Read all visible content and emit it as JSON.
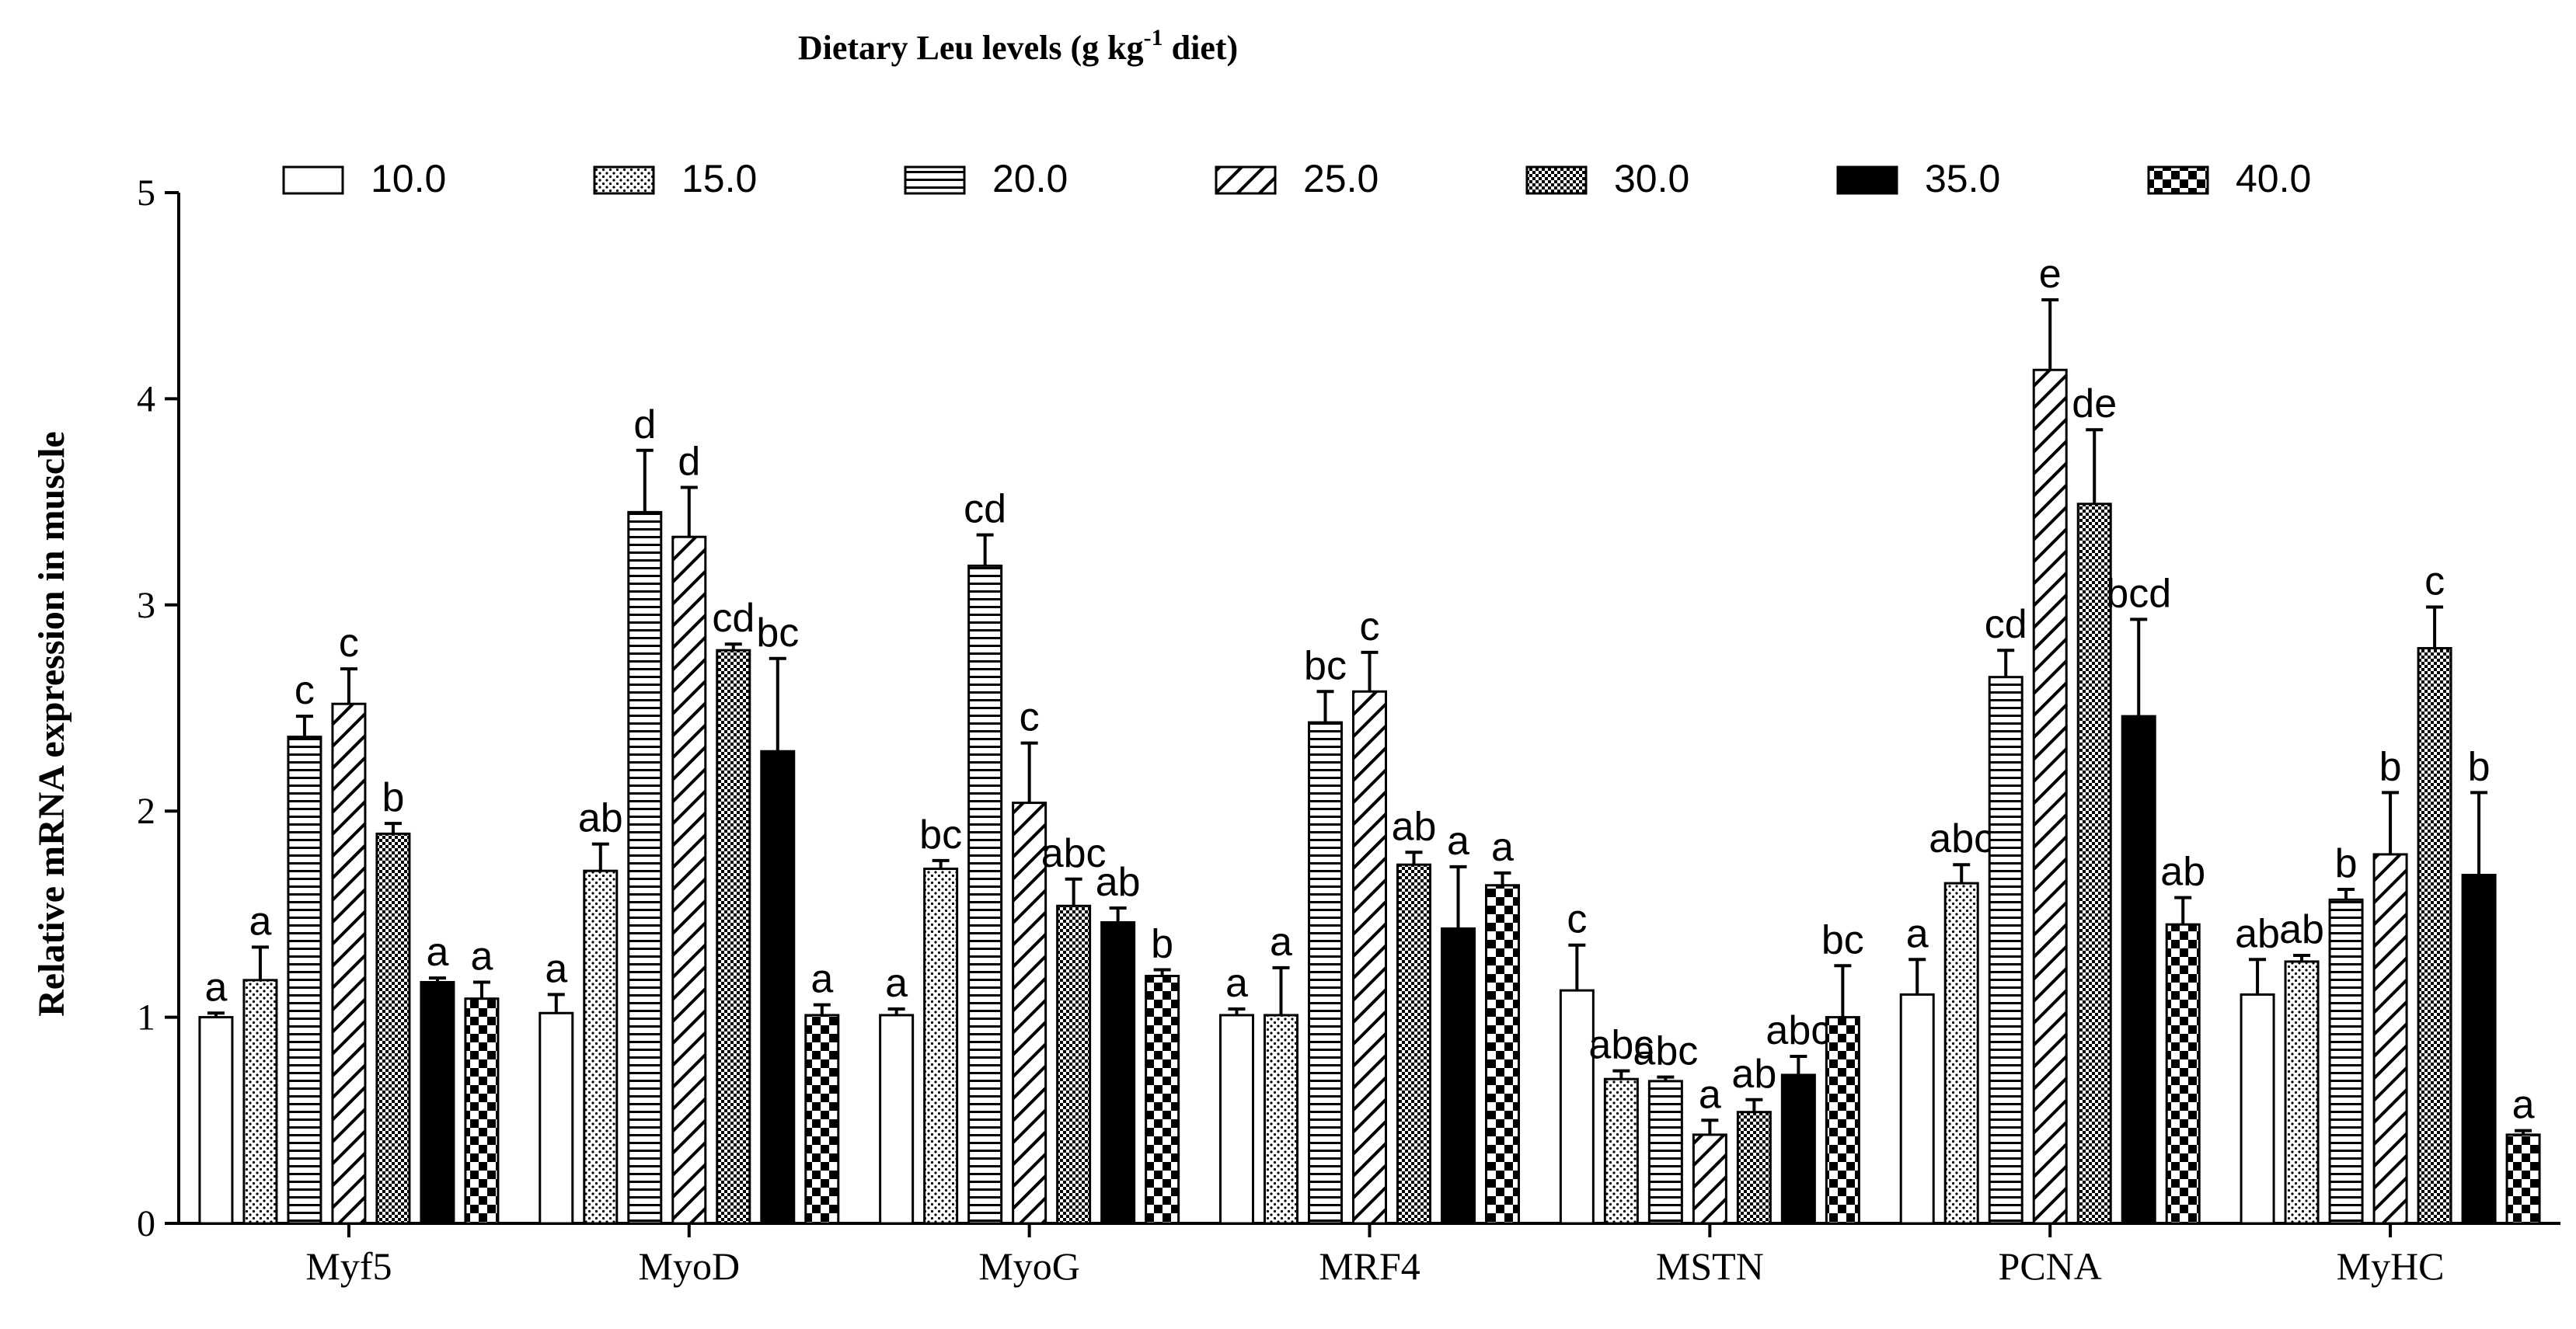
{
  "chart_data": {
    "type": "bar",
    "title": "Dietary Leu levels (g kg",
    "title_sup": "-1",
    "title_tail": " diet)",
    "xlabel": "",
    "ylabel": "Relative mRNA expression in muscle",
    "ylim": [
      0,
      5
    ],
    "yticks": [
      "0",
      "1",
      "2",
      "3",
      "4",
      "5"
    ],
    "categories": [
      "Myf5",
      "MyoD",
      "MyoG",
      "MRF4",
      "MSTN",
      "PCNA",
      "MyHC"
    ],
    "legend_position": "top",
    "series": [
      {
        "name": "10.0",
        "pattern": "white",
        "values": [
          1.0,
          1.02,
          1.01,
          1.01,
          1.13,
          1.11,
          1.11
        ],
        "errors": [
          0.02,
          0.09,
          0.03,
          0.03,
          0.22,
          0.17,
          0.17
        ],
        "labels": [
          "a",
          "a",
          "a",
          "a",
          "c",
          "a",
          "ab"
        ]
      },
      {
        "name": "15.0",
        "pattern": "dots",
        "values": [
          1.18,
          1.71,
          1.72,
          1.01,
          0.7,
          1.65,
          1.27
        ],
        "errors": [
          0.16,
          0.13,
          0.04,
          0.23,
          0.04,
          0.09,
          0.03
        ],
        "labels": [
          "a",
          "ab",
          "bc",
          "a",
          "abc",
          "abc",
          "ab"
        ]
      },
      {
        "name": "20.0",
        "pattern": "hlines",
        "values": [
          2.36,
          3.45,
          3.19,
          2.43,
          0.69,
          2.65,
          1.57
        ],
        "errors": [
          0.1,
          0.3,
          0.15,
          0.15,
          0.02,
          0.13,
          0.05
        ],
        "labels": [
          "c",
          "d",
          "cd",
          "bc",
          "abc",
          "cd",
          "b"
        ]
      },
      {
        "name": "25.0",
        "pattern": "diag",
        "values": [
          2.52,
          3.33,
          2.04,
          2.58,
          0.43,
          4.14,
          1.79
        ],
        "errors": [
          0.17,
          0.24,
          0.29,
          0.19,
          0.07,
          0.34,
          0.3
        ],
        "labels": [
          "c",
          "d",
          "c",
          "c",
          "a",
          "e",
          "b"
        ]
      },
      {
        "name": "30.0",
        "pattern": "checker",
        "values": [
          1.89,
          2.78,
          1.54,
          1.74,
          0.54,
          3.49,
          2.79
        ],
        "errors": [
          0.05,
          0.03,
          0.13,
          0.06,
          0.06,
          0.36,
          0.2
        ],
        "labels": [
          "b",
          "cd",
          "abc",
          "ab",
          "ab",
          "de",
          "c"
        ]
      },
      {
        "name": "35.0",
        "pattern": "black",
        "values": [
          1.17,
          2.29,
          1.46,
          1.43,
          0.72,
          2.46,
          1.69
        ],
        "errors": [
          0.02,
          0.45,
          0.07,
          0.3,
          0.09,
          0.47,
          0.4
        ],
        "labels": [
          "a",
          "bc",
          "ab",
          "a",
          "abc",
          "bcd",
          "b"
        ]
      },
      {
        "name": "40.0",
        "pattern": "bigcheck",
        "values": [
          1.09,
          1.01,
          1.2,
          1.64,
          1.0,
          1.45,
          0.43
        ],
        "errors": [
          0.08,
          0.05,
          0.03,
          0.06,
          0.25,
          0.13,
          0.02
        ],
        "labels": [
          "a",
          "a",
          "b",
          "a",
          "bc",
          "ab",
          "a"
        ]
      }
    ]
  }
}
